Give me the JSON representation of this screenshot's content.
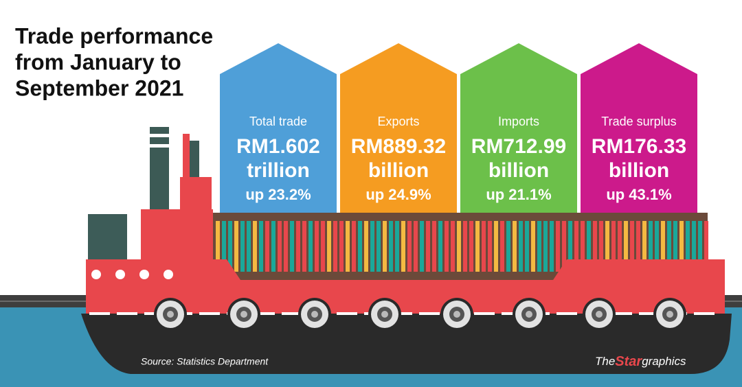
{
  "title": {
    "lines": [
      "Trade performance",
      "from January to",
      "September 2021"
    ]
  },
  "cards": [
    {
      "label": "Total trade",
      "amount": "RM1.602",
      "unit": "trillion",
      "change": "up 23.2%",
      "color": "#4f9fd8"
    },
    {
      "label": "Exports",
      "amount": "RM889.32",
      "unit": "billion",
      "change": "up 24.9%",
      "color": "#f59c21"
    },
    {
      "label": "Imports",
      "amount": "RM712.99",
      "unit": "billion",
      "change": "up 21.1%",
      "color": "#6cc04a"
    },
    {
      "label": "Trade surplus",
      "amount": "RM176.33",
      "unit": "billion",
      "change": "up 43.1%",
      "color": "#cc1a8b"
    }
  ],
  "source": "Source: Statistics Department",
  "brand": {
    "the": "The",
    "star": "Star",
    "graphics": "graphics"
  }
}
